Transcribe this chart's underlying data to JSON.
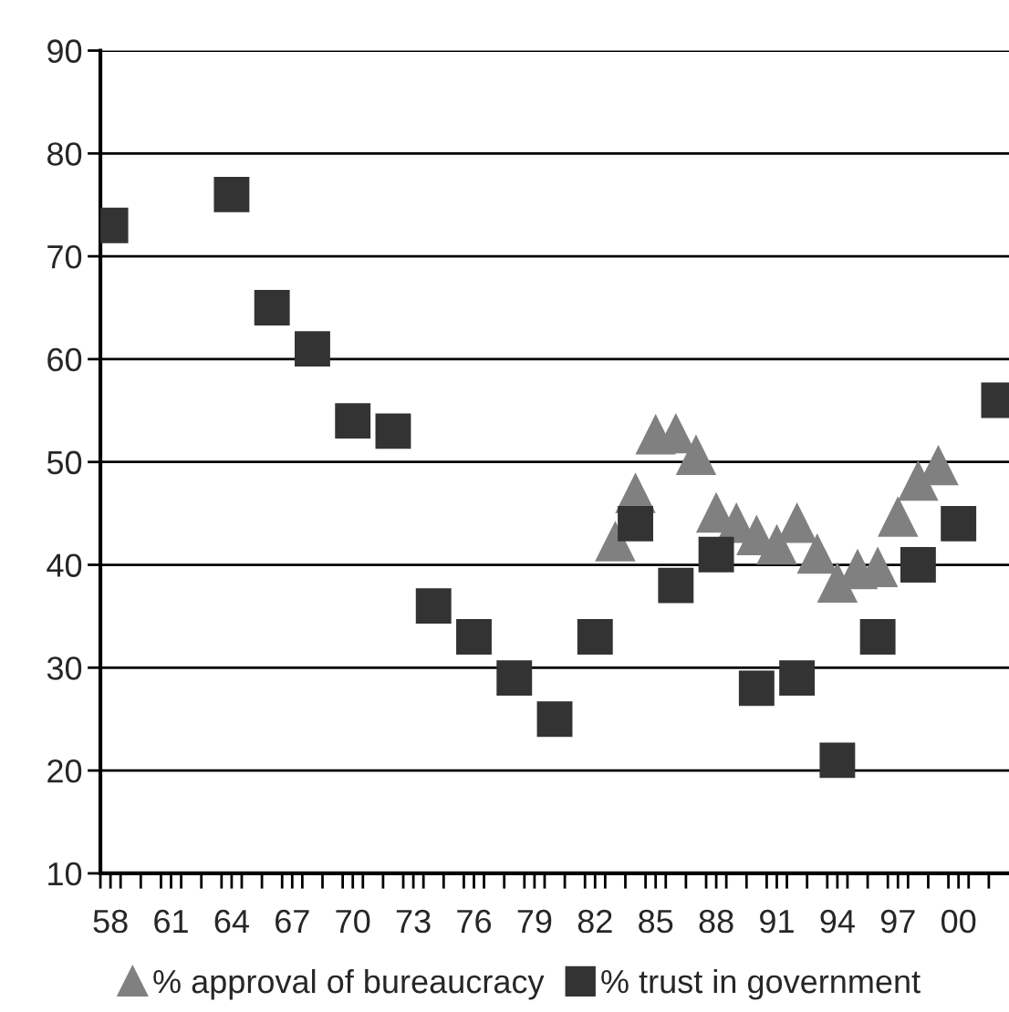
{
  "chart_data": {
    "type": "scatter",
    "series": [
      {
        "name": "% approval of bureaucracy",
        "color": "#808080",
        "marker": "triangle",
        "x": [
          1983,
          1984,
          1985,
          1986,
          1987,
          1988,
          1989,
          1990,
          1991,
          1992,
          1993,
          1994,
          1995,
          1996,
          1997,
          1998,
          1999
        ],
        "values": [
          42.3,
          47,
          52.7,
          52.8,
          50.7,
          45.1,
          44.1,
          42.9,
          42,
          44.1,
          41.1,
          38.3,
          39.6,
          39.8,
          44.7,
          48.2,
          49.7
        ]
      },
      {
        "name": "% trust in government",
        "color": "#333333",
        "marker": "square",
        "x": [
          1958,
          1964,
          1966,
          1968,
          1970,
          1972,
          1974,
          1976,
          1978,
          1980,
          1982,
          1984,
          1986,
          1988,
          1990,
          1992,
          1994,
          1996,
          1998,
          2000,
          2002
        ],
        "values": [
          73,
          76,
          65,
          61,
          54,
          53,
          36,
          33,
          29,
          25,
          33,
          44,
          38,
          41,
          28,
          29,
          21,
          33,
          40,
          44,
          56
        ]
      }
    ],
    "xlim": [
      1957.5,
      2002.5
    ],
    "xticks": [
      {
        "value": 1958,
        "label": "58"
      },
      {
        "value": 1961,
        "label": "61"
      },
      {
        "value": 1964,
        "label": "64"
      },
      {
        "value": 1967,
        "label": "67"
      },
      {
        "value": 1970,
        "label": "70"
      },
      {
        "value": 1973,
        "label": "73"
      },
      {
        "value": 1976,
        "label": "76"
      },
      {
        "value": 1979,
        "label": "79"
      },
      {
        "value": 1982,
        "label": "82"
      },
      {
        "value": 1985,
        "label": "85"
      },
      {
        "value": 1988,
        "label": "88"
      },
      {
        "value": 1991,
        "label": "91"
      },
      {
        "value": 1994,
        "label": "94"
      },
      {
        "value": 1997,
        "label": "97"
      },
      {
        "value": 2000,
        "label": "00"
      },
      {
        "value": 1957.5,
        "label": null
      },
      {
        "value": 1958.5,
        "label": null
      },
      {
        "value": 1959.5,
        "label": null
      },
      {
        "value": 1960.5,
        "label": null
      },
      {
        "value": 1961.5,
        "label": null
      },
      {
        "value": 1962.5,
        "label": null
      },
      {
        "value": 1963.5,
        "label": null
      },
      {
        "value": 1964.5,
        "label": null
      },
      {
        "value": 1965.5,
        "label": null
      },
      {
        "value": 1966.5,
        "label": null
      },
      {
        "value": 1967.5,
        "label": null
      },
      {
        "value": 1968.5,
        "label": null
      },
      {
        "value": 1969.5,
        "label": null
      },
      {
        "value": 1970.5,
        "label": null
      },
      {
        "value": 1971.5,
        "label": null
      },
      {
        "value": 1972.5,
        "label": null
      },
      {
        "value": 1973.5,
        "label": null
      },
      {
        "value": 1974.5,
        "label": null
      },
      {
        "value": 1975.5,
        "label": null
      },
      {
        "value": 1976.5,
        "label": null
      },
      {
        "value": 1977.5,
        "label": null
      },
      {
        "value": 1978.5,
        "label": null
      },
      {
        "value": 1979.5,
        "label": null
      },
      {
        "value": 1980.5,
        "label": null
      },
      {
        "value": 1981.5,
        "label": null
      },
      {
        "value": 1982.5,
        "label": null
      },
      {
        "value": 1983.5,
        "label": null
      },
      {
        "value": 1984.5,
        "label": null
      },
      {
        "value": 1985.5,
        "label": null
      },
      {
        "value": 1986.5,
        "label": null
      },
      {
        "value": 1987.5,
        "label": null
      },
      {
        "value": 1988.5,
        "label": null
      },
      {
        "value": 1989.5,
        "label": null
      },
      {
        "value": 1990.5,
        "label": null
      },
      {
        "value": 1991.5,
        "label": null
      },
      {
        "value": 1992.5,
        "label": null
      },
      {
        "value": 1993.5,
        "label": null
      },
      {
        "value": 1994.5,
        "label": null
      },
      {
        "value": 1995.5,
        "label": null
      },
      {
        "value": 1996.5,
        "label": null
      },
      {
        "value": 1997.5,
        "label": null
      },
      {
        "value": 1998.5,
        "label": null
      },
      {
        "value": 1999.5,
        "label": null
      },
      {
        "value": 2000.5,
        "label": null
      },
      {
        "value": 2001.5,
        "label": null
      }
    ],
    "ylim": [
      10,
      90
    ],
    "yticks": [
      10,
      20,
      30,
      40,
      50,
      60,
      70,
      80,
      90
    ],
    "grid": "y",
    "legend": "bottom"
  }
}
